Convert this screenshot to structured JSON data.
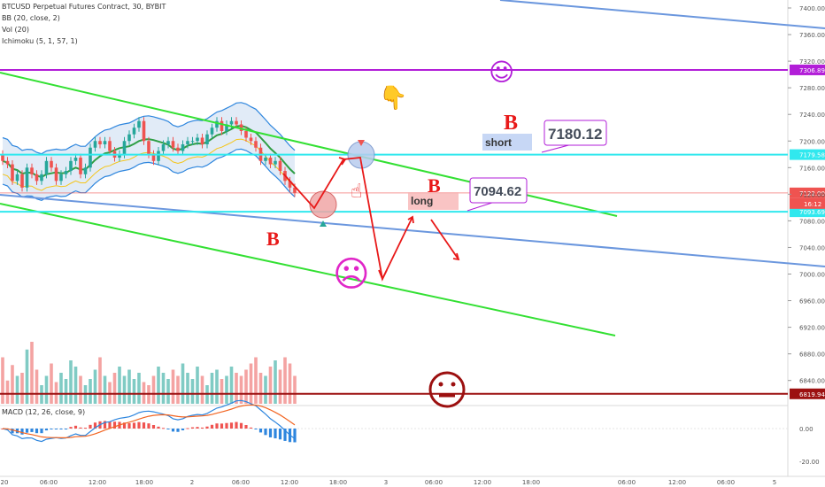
{
  "header": {
    "symbol": "BTCUSD Perpetual Futures Contract, 30, BYBIT",
    "indicators": [
      "BB (20, close, 2)",
      "Vol (20)",
      "Ichimoku (5, 1, 57, 1)"
    ],
    "macd_label": "MACD (12, 26, close, 9)"
  },
  "colors": {
    "up": "#26a69a",
    "down": "#ef5350",
    "trend_green": "#33e033",
    "trend_blue": "#6b97de",
    "annot_red": "#e81919",
    "purple": "#b21ed8",
    "cyan": "#30e8ee",
    "support_dark": "#9c1010",
    "emoji_magenta": "#e026c8"
  },
  "chart_data": {
    "type": "candlestick",
    "symbol": "BTCUSD",
    "interval": "30",
    "exchange": "BYBIT",
    "price_axis": {
      "min": 6820,
      "max": 7400,
      "ticks": [
        7400,
        7360,
        7320,
        7280,
        7240,
        7200,
        7160,
        7120,
        7080,
        7040,
        7000,
        6960,
        6920,
        6880,
        6840
      ]
    },
    "time_axis": {
      "ticks": [
        "20",
        "06:00",
        "12:00",
        "18:00",
        "2",
        "06:00",
        "12:00",
        "18:00",
        "3",
        "06:00",
        "12:00",
        "18:00",
        "06:00",
        "12:00",
        "06:00",
        "5"
      ]
    },
    "candles": {
      "open": [
        7180,
        7170,
        7165,
        7140,
        7150,
        7130,
        7160,
        7150,
        7140,
        7150,
        7170,
        7160,
        7140,
        7150,
        7155,
        7170,
        7175,
        7150,
        7160,
        7190,
        7200,
        7195,
        7200,
        7185,
        7175,
        7180,
        7200,
        7210,
        7220,
        7230,
        7200,
        7180,
        7170,
        7185,
        7195,
        7200,
        7190,
        7185,
        7195,
        7200,
        7200,
        7205,
        7195,
        7210,
        7220,
        7230,
        7215,
        7225,
        7230,
        7225,
        7215,
        7205,
        7200,
        7190,
        7170,
        7175,
        7165,
        7170,
        7155,
        7140,
        7130
      ],
      "close": [
        7170,
        7165,
        7140,
        7150,
        7130,
        7160,
        7150,
        7140,
        7150,
        7170,
        7160,
        7140,
        7150,
        7155,
        7170,
        7175,
        7150,
        7160,
        7190,
        7200,
        7195,
        7200,
        7185,
        7175,
        7180,
        7200,
        7210,
        7220,
        7230,
        7200,
        7180,
        7170,
        7185,
        7195,
        7200,
        7190,
        7185,
        7195,
        7200,
        7200,
        7205,
        7195,
        7210,
        7220,
        7230,
        7215,
        7225,
        7230,
        7225,
        7215,
        7205,
        7200,
        7190,
        7170,
        7175,
        7165,
        7170,
        7155,
        7140,
        7130,
        7122
      ]
    },
    "volume": [
      30,
      15,
      25,
      18,
      20,
      35,
      40,
      22,
      12,
      18,
      26,
      14,
      20,
      16,
      28,
      24,
      18,
      12,
      16,
      22,
      30,
      18,
      14,
      20,
      24,
      18,
      22,
      16,
      20,
      14,
      12,
      18,
      24,
      20,
      16,
      22,
      18,
      26,
      20,
      16,
      24,
      18,
      12,
      20,
      22,
      16,
      18,
      24,
      20,
      18,
      22,
      26,
      30,
      20,
      18,
      24,
      28,
      22,
      30,
      26,
      18
    ],
    "horizontal_levels": [
      {
        "price": 7306.89,
        "label": "7306.89",
        "color": "#b21ed8"
      },
      {
        "price": 7179.58,
        "label": "7179.58",
        "color": "#30e8ee"
      },
      {
        "price": 7122.0,
        "label": "7122.00",
        "color": "#ef5350"
      },
      {
        "price": 7093.69,
        "label": "7093.69",
        "color": "#30e8ee"
      },
      {
        "price": 6819.94,
        "label": "6819.94",
        "color": "#9c1010"
      }
    ],
    "countdown_label": "16:12",
    "macd_axis": {
      "ticks": [
        "0.00",
        "-20.00"
      ]
    },
    "annotations": {
      "short_label": "short",
      "short_price": "7180.12",
      "long_label": "long",
      "long_price": "7094.62",
      "b_mark": "B",
      "happy_face": "☺",
      "sad_face": "☹",
      "neutral_face": "😐",
      "hand_down": "👇",
      "hand_up": "☝"
    }
  }
}
